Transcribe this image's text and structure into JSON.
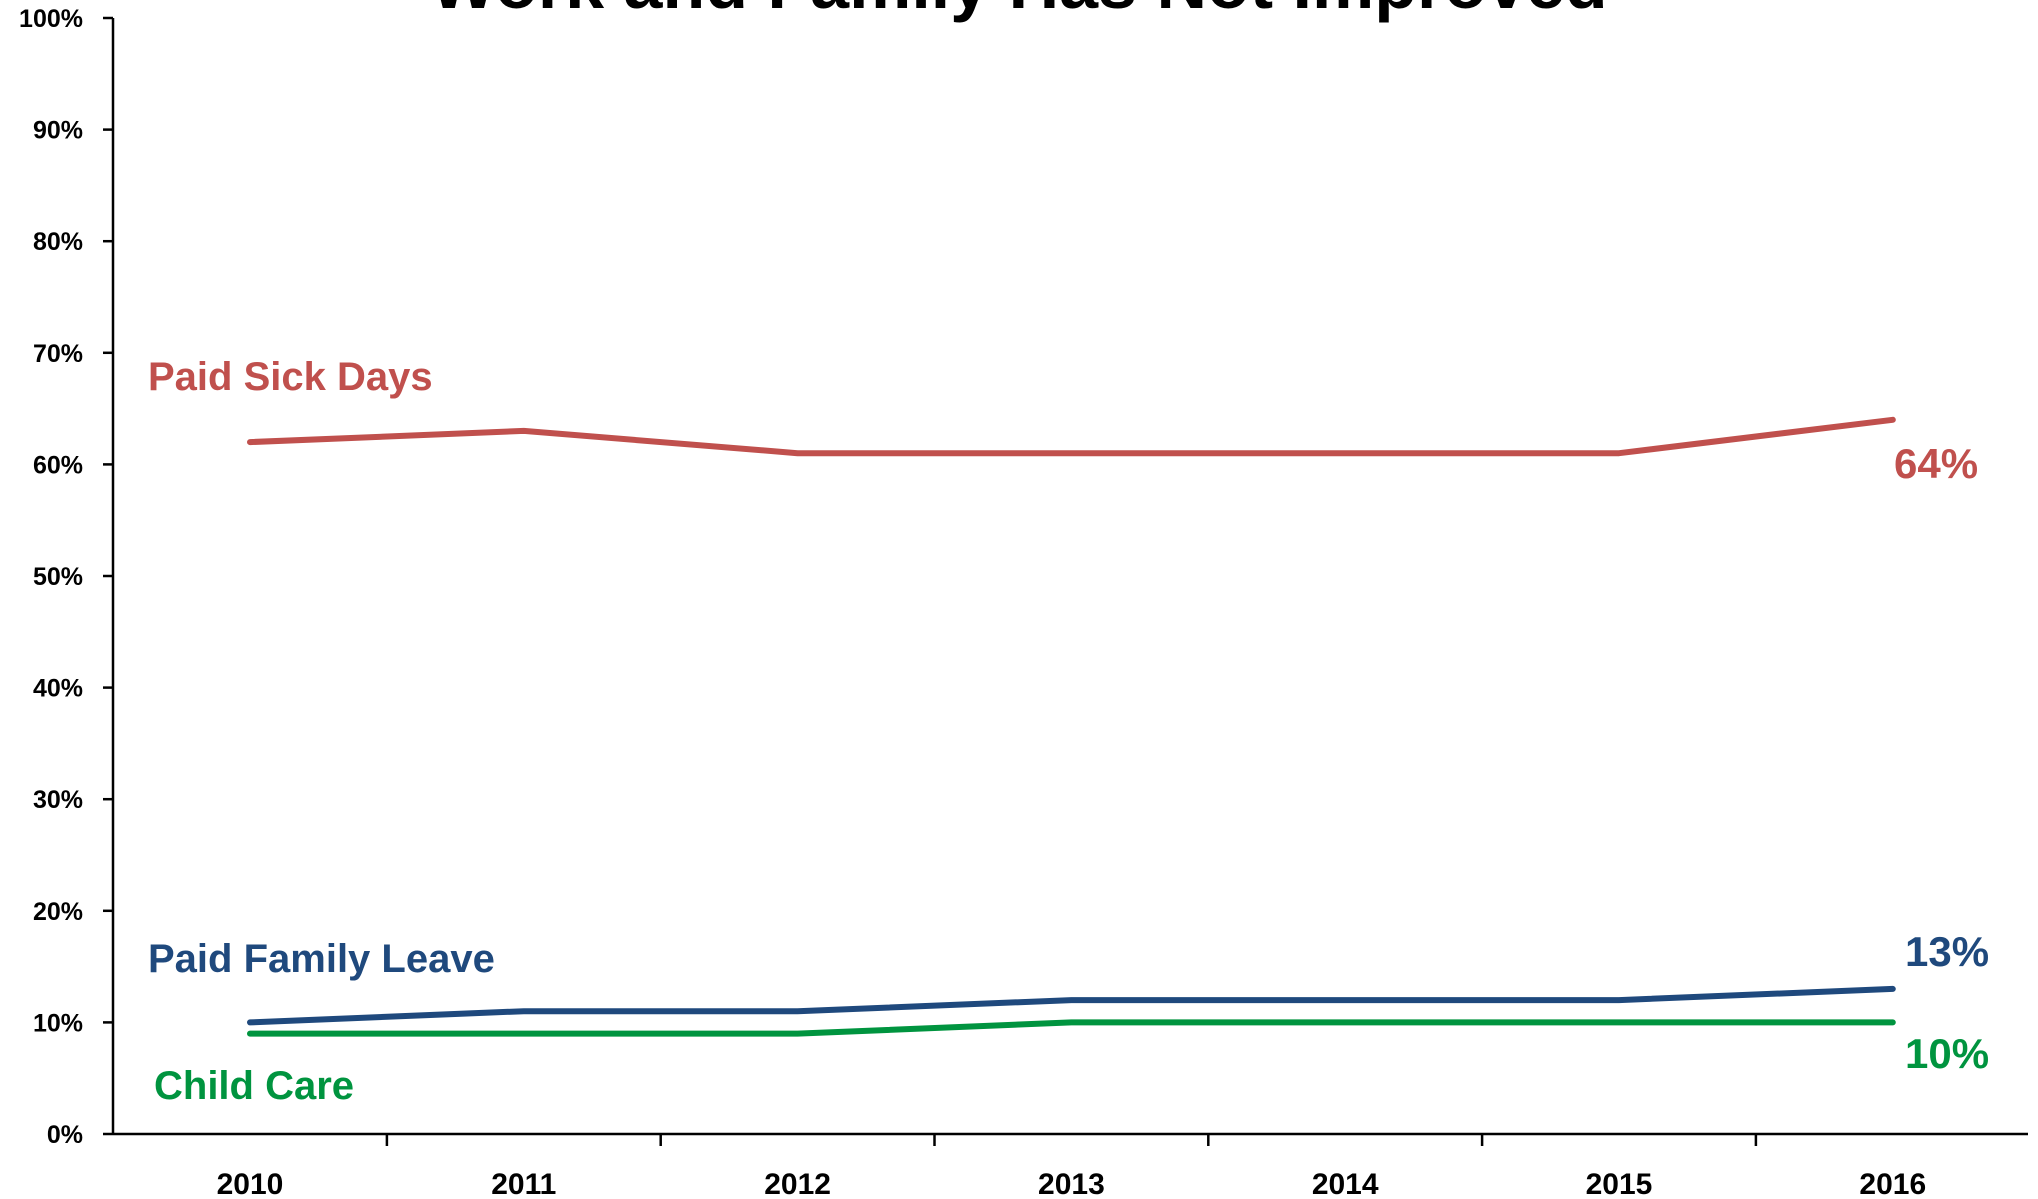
{
  "chart_data": {
    "type": "line",
    "title": "Work and Family Has Not Improved",
    "xlabel": "",
    "ylabel": "",
    "x": [
      "2010",
      "2011",
      "2012",
      "2013",
      "2014",
      "2015",
      "2016"
    ],
    "ylim": [
      0,
      100
    ],
    "yticks": [
      0,
      10,
      20,
      30,
      40,
      50,
      60,
      70,
      80,
      90,
      100
    ],
    "ytick_labels": [
      "0%",
      "10%",
      "20%",
      "30%",
      "40%",
      "50%",
      "60%",
      "70%",
      "80%",
      "90%",
      "100%"
    ],
    "grid": false,
    "series": [
      {
        "name": "Paid Sick Days",
        "color": "#c0504d",
        "values": [
          62,
          63,
          61,
          61,
          61,
          61,
          64
        ],
        "end_label": "64%"
      },
      {
        "name": "Paid Family Leave",
        "color": "#1f497d",
        "values": [
          10,
          11,
          11,
          12,
          12,
          12,
          13
        ],
        "end_label": "13%"
      },
      {
        "name": "Child Care",
        "color": "#00943f",
        "values": [
          9,
          9,
          9,
          10,
          10,
          10,
          10
        ],
        "end_label": "10%"
      }
    ]
  }
}
